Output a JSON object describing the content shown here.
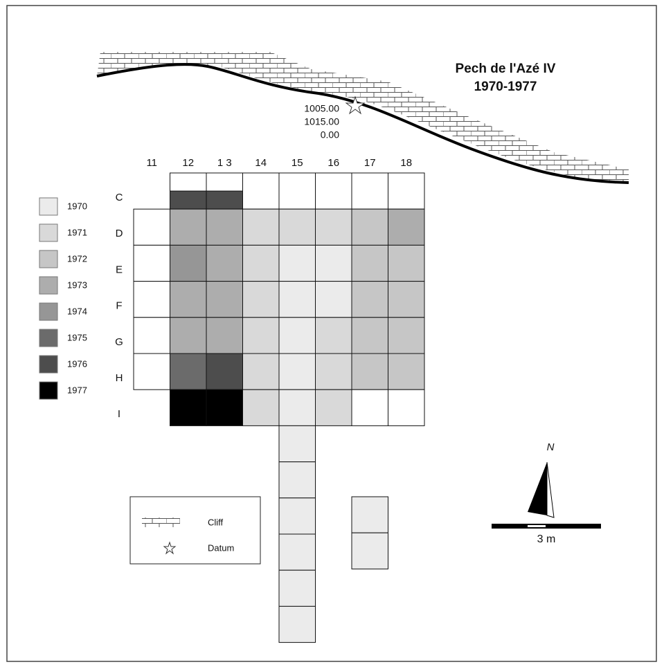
{
  "title": {
    "name": "Pech de l'Azé IV",
    "years": "1970-1977"
  },
  "datum": {
    "labels": [
      "1005.00",
      "1015.00",
      "0.00"
    ]
  },
  "grid": {
    "columns": [
      "11",
      "12",
      "1 3",
      "14",
      "15",
      "16",
      "17",
      "18"
    ],
    "rows": [
      "C",
      "D",
      "E",
      "F",
      "G",
      "H",
      "I"
    ]
  },
  "legend": {
    "years": [
      "1970",
      "1971",
      "1972",
      "1973",
      "1974",
      "1975",
      "1976",
      "1977"
    ]
  },
  "key": {
    "cliff": "Cliff",
    "datum": "Datum"
  },
  "north": "N",
  "scale": "3 m"
}
